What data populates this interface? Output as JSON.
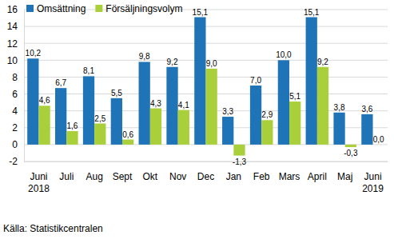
{
  "chart_data": {
    "type": "bar",
    "categories": [
      "Juni 2018",
      "Juli",
      "Aug",
      "Sept",
      "Okt",
      "Nov",
      "Dec",
      "Jan",
      "Feb",
      "Mars",
      "April",
      "Maj",
      "Juni 2019"
    ],
    "series": [
      {
        "name": "Omsättning",
        "color": "#1f74b8",
        "values": [
          10.2,
          6.7,
          8.1,
          5.5,
          9.8,
          9.2,
          15.1,
          3.3,
          7.0,
          10.0,
          15.1,
          3.8,
          3.6
        ],
        "value_labels": [
          "10,2",
          "6,7",
          "8,1",
          "5,5",
          "9,8",
          "9,2",
          "15,1",
          "3,3",
          "7,0",
          "10,0",
          "15,1",
          "3,8",
          "3,6"
        ]
      },
      {
        "name": "Försäljningsvolym",
        "color": "#a9d03a",
        "values": [
          4.6,
          1.6,
          2.5,
          0.6,
          4.3,
          4.1,
          9.0,
          -1.3,
          2.9,
          5.1,
          9.2,
          -0.3,
          0.0
        ],
        "value_labels": [
          "4,6",
          "1,6",
          "2,5",
          "0,6",
          "4,3",
          "4,1",
          "9,0",
          "-1,3",
          "2,9",
          "5,1",
          "9,2",
          "-0,3",
          "0,0"
        ]
      }
    ],
    "ylim": [
      -2,
      16
    ],
    "yticks": [
      -2,
      0,
      2,
      4,
      6,
      8,
      10,
      12,
      14,
      16
    ],
    "grid": true,
    "legend": "top-left",
    "data_labels": true,
    "annotations": [
      "Källa: Statistikcentralen"
    ]
  }
}
